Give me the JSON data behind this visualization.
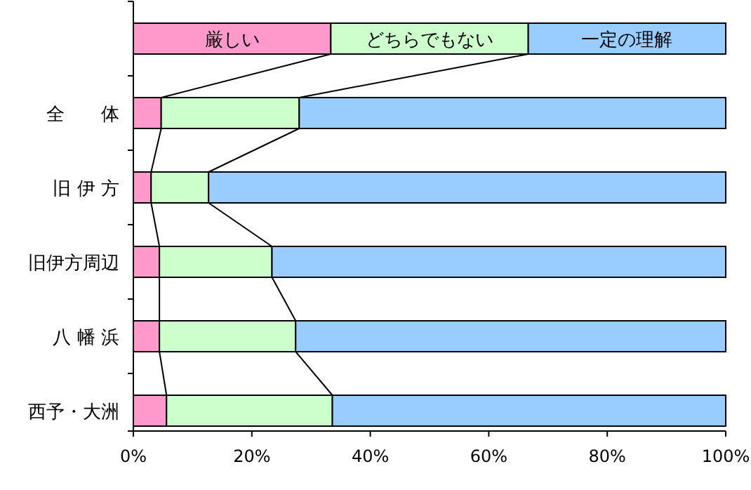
{
  "chart_data": {
    "type": "bar",
    "orientation": "horizontal",
    "stacked": true,
    "categories": [
      "全　　体",
      "旧 伊 方",
      "旧伊方周辺",
      "八 幡 浜",
      "西予・大洲"
    ],
    "series": [
      {
        "name": "厳しい",
        "color": "#ff99cc",
        "values": [
          4.7,
          3.0,
          4.4,
          4.4,
          5.6
        ]
      },
      {
        "name": "どちらでもない",
        "color": "#ccffcc",
        "values": [
          23.3,
          9.7,
          19.0,
          23.0,
          28.0
        ]
      },
      {
        "name": "一定の理解",
        "color": "#99ccff",
        "values": [
          72.0,
          87.3,
          76.6,
          72.6,
          66.4
        ]
      }
    ],
    "xlim": [
      0,
      100
    ],
    "xticks": [
      {
        "value": 0,
        "label": "0%"
      },
      {
        "value": 20,
        "label": "20%"
      },
      {
        "value": 40,
        "label": "40%"
      },
      {
        "value": 60,
        "label": "60%"
      },
      {
        "value": 80,
        "label": "80%"
      },
      {
        "value": 100,
        "label": "100%"
      }
    ],
    "legend": "top",
    "grid": false
  }
}
